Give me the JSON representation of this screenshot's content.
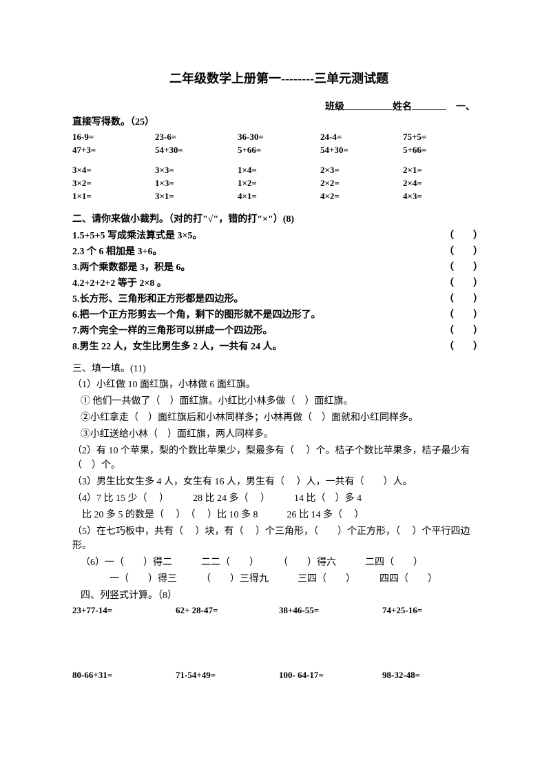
{
  "title": "二年级数学上册第一--------三单元测试题",
  "header": {
    "class_label": "班级",
    "name_label": "姓名"
  },
  "section1": {
    "title": "一、直接写得数。（25）",
    "rows": [
      [
        "16-9=",
        "23-6=",
        "36-30=",
        "24-4=",
        "75+5="
      ],
      [
        "47+3=",
        "54+30=",
        "5+66=",
        "54+30=",
        "5+66="
      ],
      [
        "3×4=",
        "3×3=",
        "1×4=",
        "2×3=",
        "2×1="
      ],
      [
        "3×2=",
        "1×3=",
        "1×2=",
        "2×2=",
        "2×4="
      ],
      [
        "1×1=",
        "3×1=",
        "4×1=",
        "4×2=",
        "4×3="
      ]
    ]
  },
  "section2": {
    "title": "二、请你来做小裁判。（对的打\"√\"，错的打\"×\"）(8)",
    "items": [
      "1.5+5+5 写成乘法算式是 3×5。",
      "2.3 个 6 相加是 3+6。",
      "3.两个乘数都是 3，积是 6。",
      "4.2+2+2+2 等于 2×8 。",
      "5.长方形、三角形和正方形都是四边形。",
      "6.把一个正方形剪去一个角，剩下的图形就不是四边形了。",
      "7.两个完全一样的三角形可以拼成一个四边形。",
      "8.男生 22 人，女生比男生多 2 人，一共有 24 人。"
    ],
    "paren": "（　　）"
  },
  "section3": {
    "title": "三、填一填。(11)",
    "lines": [
      "（1）小红做 10 面红旗，小林做 6 面红旗。",
      "① 他们一共做了（　）面红旗。小红比小林多做（　）面红旗。",
      "②小红拿走（　）面红旗后和小林同样多；小林再做（　）面就和小红同样多。",
      "③小红送给小林（　）面红旗，两人同样多。",
      "（2）有 10 个苹果，梨的个数比苹果少，梨最多有（　 ）个。桔子个数比苹果多，桔子最少有（　）个。",
      "（3）男生比女生多 4 人，女生有 16 人，男生有（　 ）人，一共有（　　）人。",
      "（4）7 比 15 少（　 ）　　　28 比 24 多（　 ）　　　14 比（　）多 4",
      "　比 20 多 5 的数是（　 ）　（　 ）比 10 多 8　　　26 比 14 多（　 ）",
      "（5）在七巧板中，共有（　 ）块，有（　 ）个三角形，（　　）个正方形，（　 ）个平行四边形。",
      "（6）一（　　）得二　　　二二（　　）　　　（　　）得六　　　二四（　　）",
      "　　　一（　　）得三　　　（　　）三得九　　　三四（　　）　　　四四（　　）"
    ]
  },
  "section4": {
    "title": "四、列竖式计算。（8）",
    "rows": [
      [
        "23+77-14=",
        "62+ 28-47=",
        "38+46-55=",
        "74+25-16="
      ],
      [
        "80-66+31=",
        "71-54+49=",
        "100- 64-17=",
        "98-32-48="
      ]
    ]
  }
}
